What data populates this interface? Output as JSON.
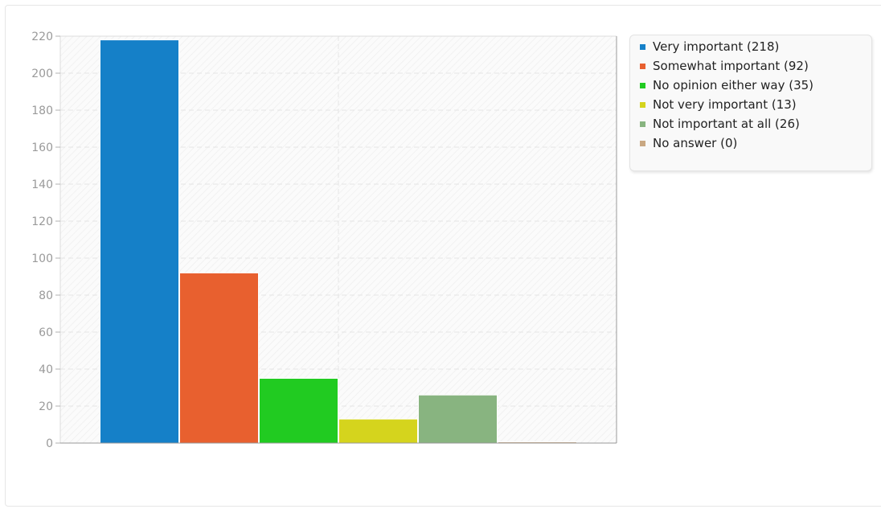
{
  "chart_data": {
    "type": "bar",
    "categories": [
      "Very important",
      "Somewhat important",
      "No opinion either way",
      "Not very important",
      "Not important at all",
      "No answer"
    ],
    "values": [
      218,
      92,
      35,
      13,
      26,
      0
    ],
    "colors": [
      "#1580c8",
      "#e8602f",
      "#21cb21",
      "#d5d41d",
      "#88b480",
      "#c9a882"
    ],
    "ylim": [
      0,
      220
    ],
    "yticks": [
      0,
      20,
      40,
      60,
      80,
      100,
      120,
      140,
      160,
      180,
      200,
      220
    ],
    "ytick_labels": [
      "0",
      "20",
      "40",
      "60",
      "80",
      "100",
      "120",
      "140",
      "160",
      "180",
      "200",
      "220"
    ],
    "grid": true,
    "legend_position": "right",
    "legend_entries": [
      "Very important (218)",
      "Somewhat important (92)",
      "No opinion either way (35)",
      "Not very important (13)",
      "Not important at all (26)",
      "No answer (0)"
    ],
    "title": "",
    "xlabel": "",
    "ylabel": ""
  }
}
